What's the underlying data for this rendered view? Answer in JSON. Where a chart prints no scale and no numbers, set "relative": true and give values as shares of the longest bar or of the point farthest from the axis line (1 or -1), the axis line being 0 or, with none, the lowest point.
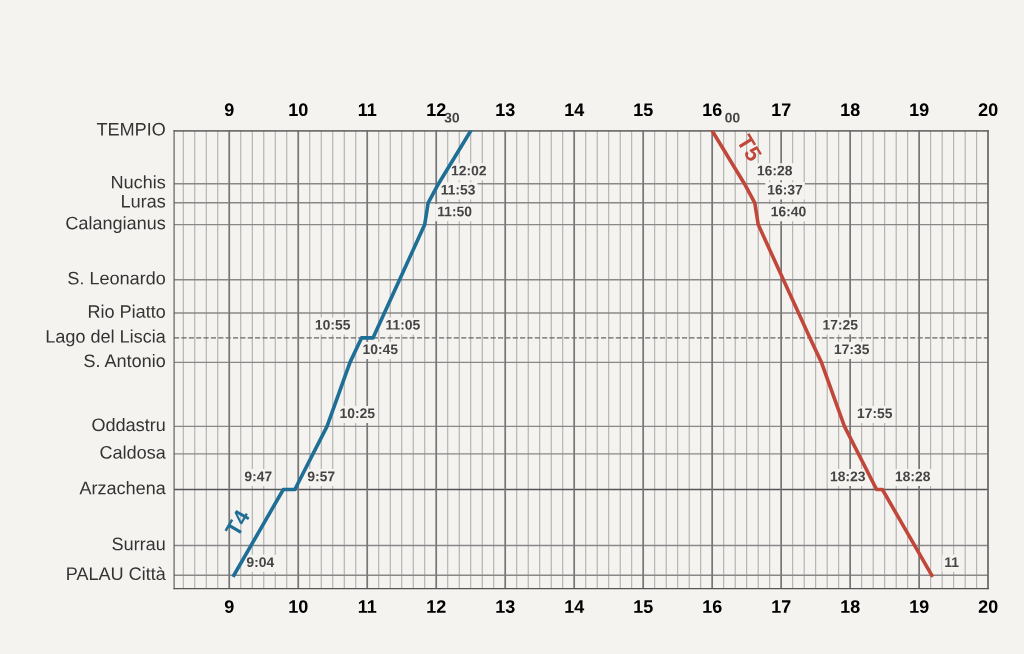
{
  "chart_data": {
    "type": "line",
    "relative": true,
    "xlim": [
      8.2,
      20
    ],
    "xticks": [
      9,
      10,
      11,
      12,
      13,
      14,
      15,
      16,
      17,
      18,
      19,
      20
    ],
    "x2lim": [
      8.2,
      20
    ],
    "x2ticks": [
      9,
      10,
      11,
      12,
      13,
      14,
      15,
      16,
      17,
      18,
      19,
      20
    ],
    "grid": "x",
    "marker": "none",
    "line_style": "solid",
    "legend": false,
    "series": [
      {
        "name": "T4",
        "color": "#1f6e96",
        "x": [
          9.067,
          9.783,
          9.95,
          10.417,
          10.75,
          10.917,
          11.083,
          11.833,
          11.883,
          12.033,
          12.5
        ],
        "values": [
          0,
          0.193,
          0.193,
          0.335,
          0.479,
          0.534,
          0.534,
          0.789,
          0.838,
          0.881,
          1
        ]
      },
      {
        "name": "T5",
        "color": "#c0473a",
        "x": [
          16.0,
          16.467,
          16.617,
          16.667,
          17.417,
          17.583,
          17.917,
          18.383,
          18.467,
          19.183
        ],
        "values": [
          1,
          0.881,
          0.838,
          0.789,
          0.534,
          0.479,
          0.335,
          0.193,
          0.193,
          0
        ]
      }
    ],
    "ref_lines": [
      {
        "axis": "y",
        "value": 1,
        "label": "TEMPIO",
        "color": "#555555"
      },
      {
        "axis": "y",
        "value": 0.881,
        "label": "Nuchis",
        "color": "#888888"
      },
      {
        "axis": "y",
        "value": 0.838,
        "label": "Luras",
        "color": "#888888"
      },
      {
        "axis": "y",
        "value": 0.789,
        "label": "Calangianus",
        "color": "#888888"
      },
      {
        "axis": "y",
        "value": 0.665,
        "label": "S. Leonardo",
        "color": "#888888"
      },
      {
        "axis": "y",
        "value": 0.59,
        "label": "Rio Piatto",
        "color": "#888888"
      },
      {
        "axis": "y",
        "value": 0.534,
        "label": "Lago del Liscia",
        "color": "#666666",
        "line_style": "dashed"
      },
      {
        "axis": "y",
        "value": 0.479,
        "label": "S. Antonio",
        "color": "#888888"
      },
      {
        "axis": "y",
        "value": 0.335,
        "label": "Oddastru",
        "color": "#888888"
      },
      {
        "axis": "y",
        "value": 0.273,
        "label": "Caldosa",
        "color": "#888888"
      },
      {
        "axis": "y",
        "value": 0.193,
        "label": "Arzachena",
        "color": "#555555"
      },
      {
        "axis": "y",
        "value": 0.067,
        "label": "Surrau",
        "color": "#888888"
      },
      {
        "axis": "y",
        "value": 0,
        "label": "PALAU Città",
        "color": "#888888"
      }
    ],
    "annotations": [
      {
        "text": "9:04",
        "x": 9.067,
        "y": 0
      },
      {
        "text": "9:47",
        "x": 9.783,
        "y": 0.193
      },
      {
        "text": "9:57",
        "x": 9.95,
        "y": 0.193
      },
      {
        "text": "10:25",
        "x": 10.417,
        "y": 0.335
      },
      {
        "text": "10:45",
        "x": 10.75,
        "y": 0.479
      },
      {
        "text": "10:55",
        "x": 10.917,
        "y": 0.534
      },
      {
        "text": "11:05",
        "x": 11.083,
        "y": 0.534
      },
      {
        "text": "11:50",
        "x": 11.833,
        "y": 0.789
      },
      {
        "text": "11:53",
        "x": 11.883,
        "y": 0.838
      },
      {
        "text": "12:02",
        "x": 12.033,
        "y": 0.881
      },
      {
        "text": "30",
        "x": 12.5,
        "y": 1
      },
      {
        "text": "00",
        "x": 16.0,
        "y": 1
      },
      {
        "text": "16:28",
        "x": 16.467,
        "y": 0.881
      },
      {
        "text": "16:37",
        "x": 16.617,
        "y": 0.838
      },
      {
        "text": "16:40",
        "x": 16.667,
        "y": 0.789
      },
      {
        "text": "17:25",
        "x": 17.417,
        "y": 0.534
      },
      {
        "text": "17:35",
        "x": 17.583,
        "y": 0.479
      },
      {
        "text": "17:55",
        "x": 17.917,
        "y": 0.335
      },
      {
        "text": "18:23",
        "x": 18.383,
        "y": 0.193
      },
      {
        "text": "18:28",
        "x": 18.467,
        "y": 0.193
      },
      {
        "text": "11",
        "x": 19.183,
        "y": 0
      }
    ]
  }
}
